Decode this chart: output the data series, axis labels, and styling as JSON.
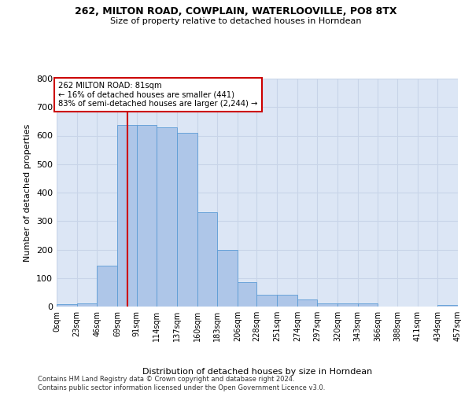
{
  "title1": "262, MILTON ROAD, COWPLAIN, WATERLOOVILLE, PO8 8TX",
  "title2": "Size of property relative to detached houses in Horndean",
  "xlabel": "Distribution of detached houses by size in Horndean",
  "ylabel": "Number of detached properties",
  "footer1": "Contains HM Land Registry data © Crown copyright and database right 2024.",
  "footer2": "Contains public sector information licensed under the Open Government Licence v3.0.",
  "annotation_line1": "262 MILTON ROAD: 81sqm",
  "annotation_line2": "← 16% of detached houses are smaller (441)",
  "annotation_line3": "83% of semi-detached houses are larger (2,244) →",
  "property_size": 81,
  "bar_edges": [
    0,
    23,
    46,
    69,
    91,
    114,
    137,
    160,
    183,
    206,
    228,
    251,
    274,
    297,
    320,
    343,
    366,
    388,
    411,
    434,
    457
  ],
  "bar_heights": [
    7,
    10,
    143,
    637,
    637,
    630,
    610,
    330,
    200,
    85,
    42,
    42,
    25,
    11,
    11,
    10,
    0,
    0,
    0,
    5
  ],
  "bar_color": "#aec6e8",
  "bar_edgecolor": "#5b9bd5",
  "vline_color": "#cc0000",
  "vline_x": 81,
  "annotation_box_edgecolor": "#cc0000",
  "annotation_box_facecolor": "#ffffff",
  "tick_labels": [
    "0sqm",
    "23sqm",
    "46sqm",
    "69sqm",
    "91sqm",
    "114sqm",
    "137sqm",
    "160sqm",
    "183sqm",
    "206sqm",
    "228sqm",
    "251sqm",
    "274sqm",
    "297sqm",
    "320sqm",
    "343sqm",
    "366sqm",
    "388sqm",
    "411sqm",
    "434sqm",
    "457sqm"
  ],
  "ylim": [
    0,
    800
  ],
  "yticks": [
    0,
    100,
    200,
    300,
    400,
    500,
    600,
    700,
    800
  ],
  "grid_color": "#c8d4e8",
  "background_color": "#dce6f5"
}
